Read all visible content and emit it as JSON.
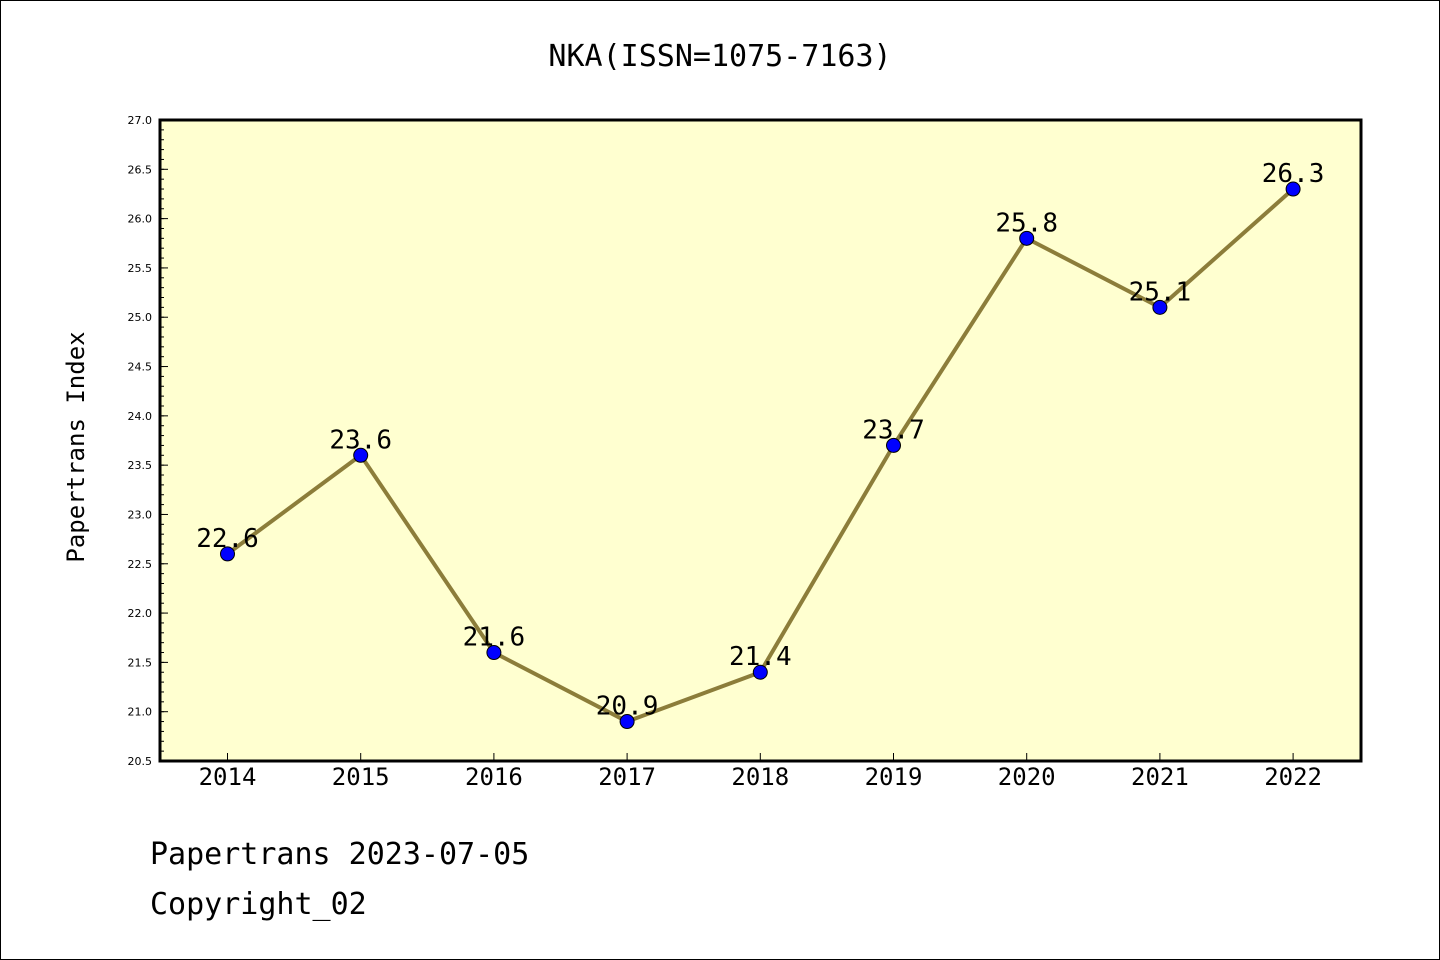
{
  "chart_data": {
    "type": "line",
    "title": "NKA(ISSN=1075-7163)",
    "xlabel": "",
    "ylabel": "Papertrans Index",
    "categories": [
      "2014",
      "2015",
      "2016",
      "2017",
      "2018",
      "2019",
      "2020",
      "2021",
      "2022"
    ],
    "series": [
      {
        "values": [
          22.6,
          23.6,
          21.6,
          20.9,
          21.4,
          23.7,
          25.8,
          25.1,
          26.3
        ],
        "labels": [
          "22.6",
          "23.6",
          "21.6",
          "20.9",
          "21.4",
          "23.7",
          "25.8",
          "25.1",
          "26.3"
        ],
        "line_color": "#8c7d3a",
        "marker_color": "#0000ff"
      }
    ],
    "ylim": [
      20.5,
      27.0
    ],
    "yticks": [
      "20.5",
      "21.0",
      "21.5",
      "22.0",
      "22.5",
      "23.0",
      "23.5",
      "24.0",
      "24.5",
      "25.0",
      "25.5",
      "26.0",
      "26.5",
      "27.0"
    ],
    "grid": false,
    "legend": "none",
    "plot_background": "#ffffd0"
  },
  "footer": {
    "line1": "Papertrans 2023-07-05",
    "line2": "Copyright_02"
  }
}
